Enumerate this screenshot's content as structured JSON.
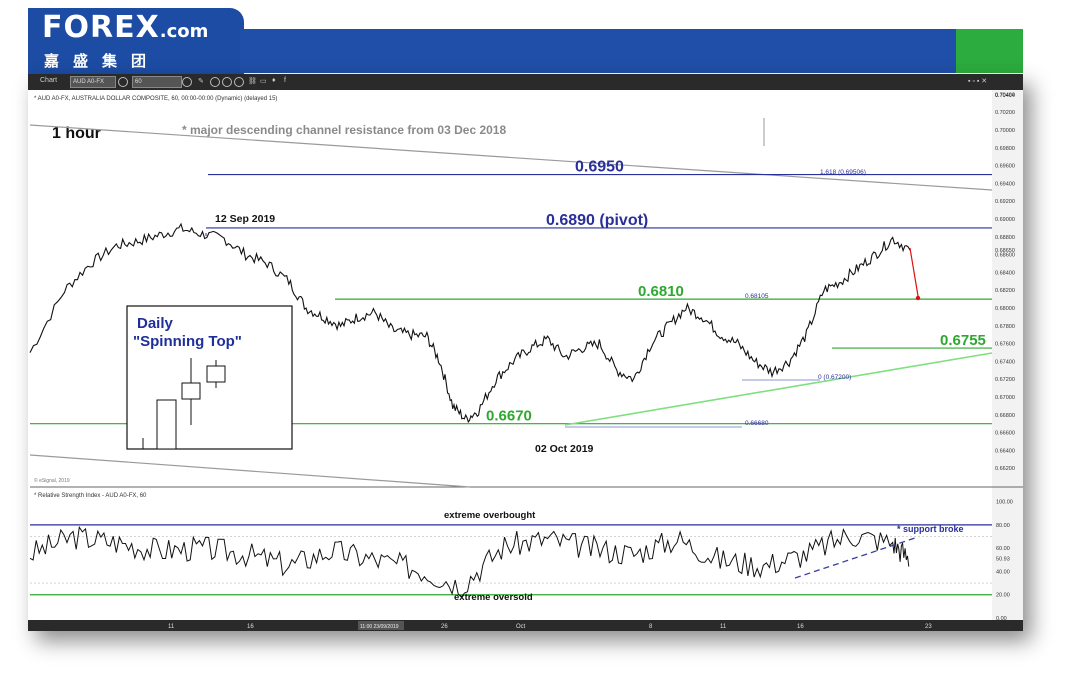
{
  "brand": {
    "logo_text": "FOREX",
    "logo_suffix": ".com",
    "logo_chinese": "嘉盛集团",
    "colors": {
      "blue": "#1f4fa8",
      "green": "#2cab3e"
    }
  },
  "toolbar": {
    "chart_label": "Chart",
    "symbol": "AUD A0-FX",
    "interval": "60",
    "icons": [
      "pencil-icon",
      "circle-icon",
      "circle-icon",
      "circle-icon",
      "link-icon",
      "comment-icon",
      "twitter-icon",
      "facebook-icon"
    ]
  },
  "chart_data": [
    {
      "type": "line",
      "subtype": "candlestick-like price line",
      "header": "* AUD A0-FX, AUSTRALIA DOLLAR COMPOSITE, 60, 00:00-00:00 (Dynamic) (delayed 15)",
      "timeframe_label": "1 hour",
      "watermark": "© eSignal, 2019",
      "ylim": [
        0.66,
        0.7045
      ],
      "y_ticks": [
        0.662,
        0.664,
        0.666,
        0.668,
        0.67,
        0.672,
        0.674,
        0.676,
        0.678,
        0.68,
        0.682,
        0.684,
        0.686,
        0.688,
        0.69,
        0.692,
        0.694,
        0.696,
        0.698,
        0.7,
        0.702,
        0.704
      ],
      "y_tick_labels": [
        "0.66200",
        "0.66400",
        "0.66600",
        "0.66800",
        "0.67000",
        "0.67200",
        "0.67400",
        "0.67600",
        "0.67800",
        "0.68000",
        "0.68200",
        "0.68400",
        "0.68600",
        "0.68800",
        "0.69000",
        "0.69200",
        "0.69400",
        "0.69600",
        "0.69800",
        "0.70000",
        "0.70200",
        "0.70400"
      ],
      "y_top_label": "0.70464",
      "last_price_label": "0.68650",
      "x_tick_labels": [
        "11",
        "16",
        "23/09/2019",
        "26",
        "Oct",
        "8",
        "11",
        "16",
        "23"
      ],
      "x_cursor_label": "11:00 23/09/2019",
      "price_path": {
        "x_index": [
          0,
          8,
          14,
          20,
          25,
          30,
          35,
          40,
          45,
          50,
          55,
          60,
          64,
          68,
          72,
          76,
          80,
          84,
          88,
          92,
          95,
          98,
          101,
          104,
          108,
          112,
          116,
          120,
          124,
          128,
          132,
          136,
          140,
          144,
          148,
          152,
          156,
          160,
          164,
          168,
          172,
          176,
          180,
          184,
          188,
          192,
          196,
          200,
          204
        ],
        "y": [
          0.675,
          0.682,
          0.685,
          0.687,
          0.6875,
          0.6882,
          0.6889,
          0.6883,
          0.6878,
          0.686,
          0.685,
          0.683,
          0.68,
          0.679,
          0.678,
          0.679,
          0.6795,
          0.6775,
          0.677,
          0.6768,
          0.674,
          0.669,
          0.6675,
          0.6685,
          0.672,
          0.674,
          0.6755,
          0.6765,
          0.6745,
          0.6755,
          0.676,
          0.673,
          0.672,
          0.676,
          0.678,
          0.68,
          0.679,
          0.677,
          0.676,
          0.674,
          0.6728,
          0.674,
          0.677,
          0.682,
          0.683,
          0.6845,
          0.686,
          0.6878,
          0.6865
        ]
      },
      "horizontal_levels": [
        {
          "name": "0.6950",
          "value": 0.695,
          "color": "#2a2f9a"
        },
        {
          "name": "0.6890 (pivot)",
          "value": 0.689,
          "color": "#2a2f9a"
        },
        {
          "name": "0.6810",
          "value": 0.681,
          "color": "#2fa82f"
        },
        {
          "name": "0.6755",
          "value": 0.6755,
          "color": "#2fa82f"
        },
        {
          "name": "0.6670",
          "value": 0.667,
          "color": "#2fa82f"
        }
      ],
      "fib_labels": [
        "1.618 (0.69506)",
        "0.68105",
        "0 (0.67200)",
        "0.66680"
      ],
      "annotations": [
        {
          "text": "* major descending channel resistance from 03 Dec 2018"
        },
        {
          "text": "12 Sep 2019"
        },
        {
          "text": "02 Oct 2019"
        }
      ],
      "inset": {
        "title_line1": "Daily",
        "title_line2": "\"Spinning Top\""
      }
    },
    {
      "type": "line",
      "header": "* Relative Strength Index - AUD A0-FX, 60",
      "ylim": [
        0,
        110
      ],
      "y_tick_labels": [
        "100.00",
        "80.00",
        "60.00",
        "50.93",
        "40.00",
        "20.00",
        "0.00"
      ],
      "levels": [
        {
          "name": "extreme overbought",
          "value": 80,
          "color": "#2a2f9a"
        },
        {
          "name": "extreme oversold",
          "value": 20,
          "color": "#2fa82f"
        }
      ],
      "annotation": "* support broke",
      "rsi_path": {
        "x_index": [
          0,
          10,
          20,
          30,
          40,
          50,
          60,
          70,
          80,
          90,
          100,
          110,
          120,
          130,
          140,
          150,
          160,
          170,
          180,
          190,
          200,
          204
        ],
        "y": [
          55,
          70,
          65,
          58,
          60,
          55,
          45,
          58,
          50,
          42,
          28,
          62,
          68,
          60,
          55,
          68,
          50,
          45,
          55,
          72,
          65,
          50
        ]
      }
    }
  ]
}
